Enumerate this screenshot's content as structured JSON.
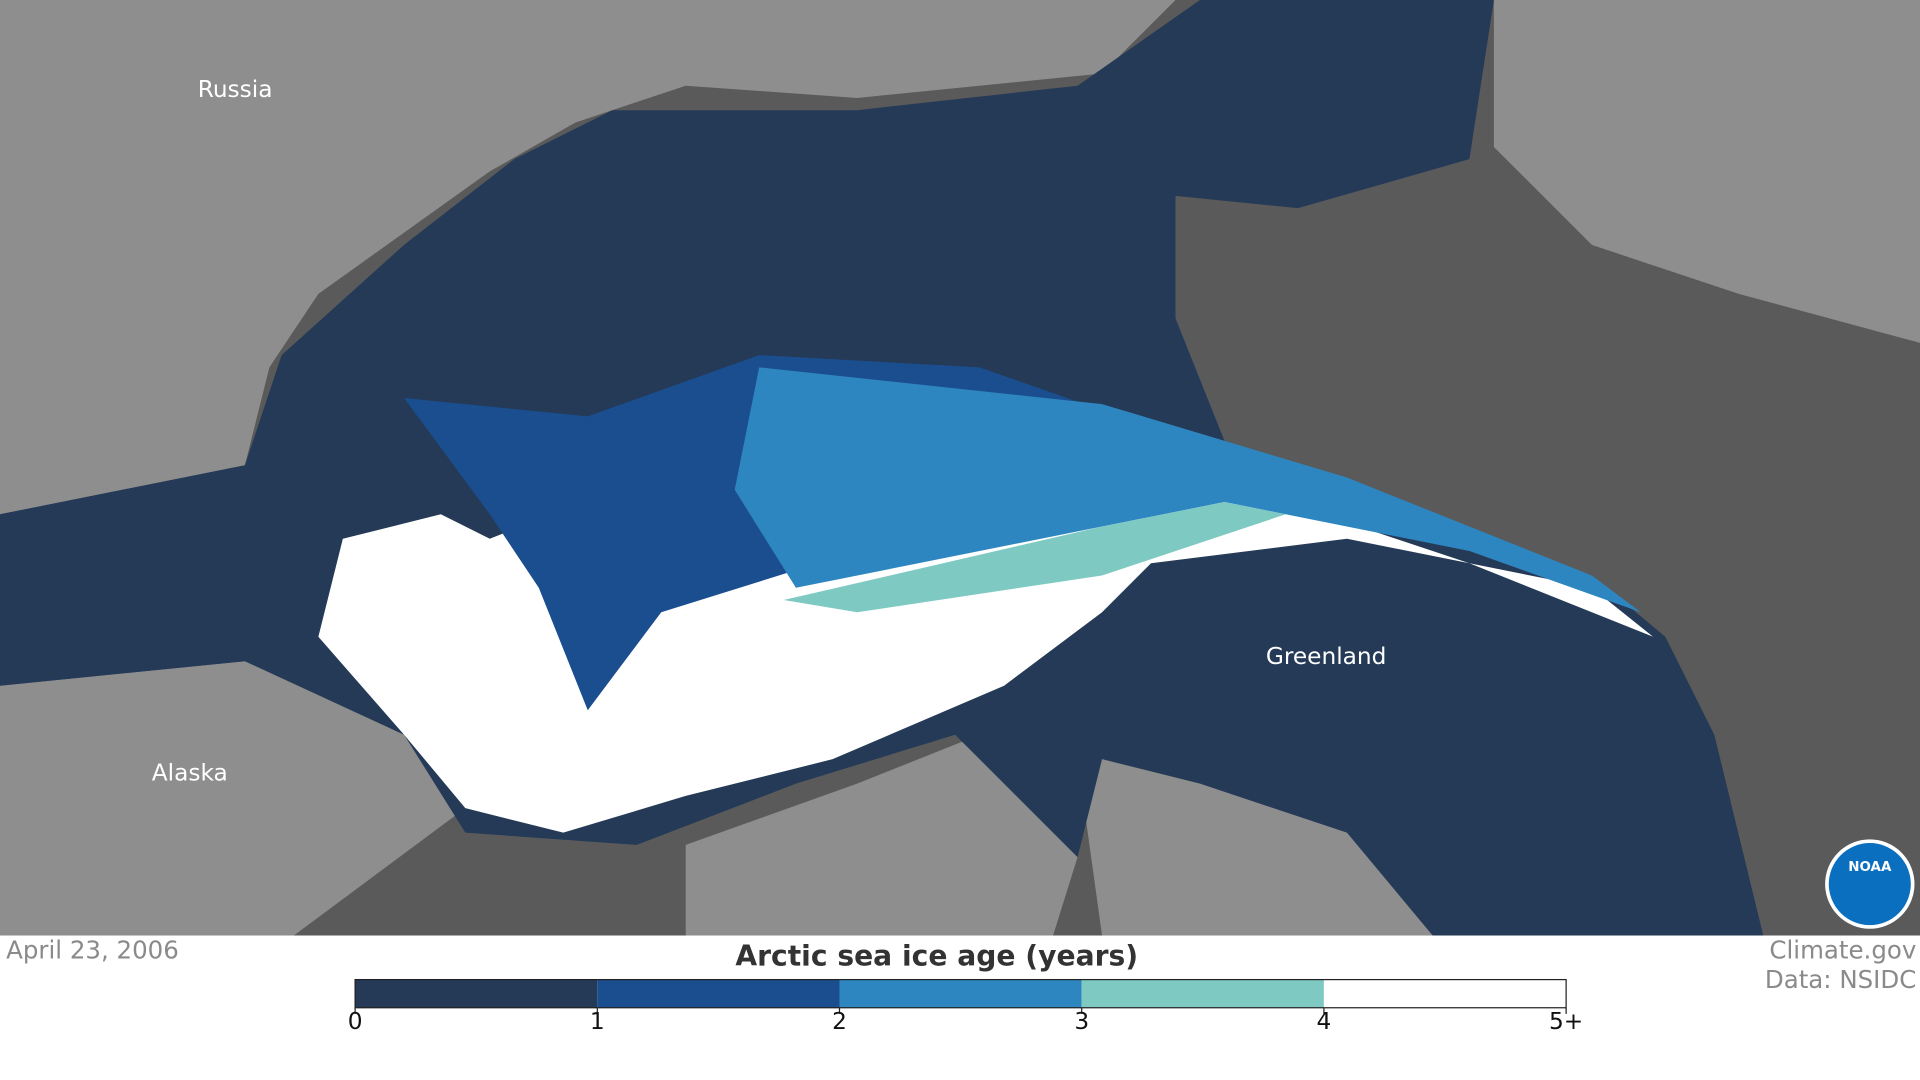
{
  "map": {
    "labels": [
      "Russia",
      "Alaska",
      "Greenland"
    ],
    "date": "April 23, 2006",
    "credit": "Climate.gov",
    "source": "Data: NSIDC",
    "logo": "NOAA"
  },
  "legend": {
    "title": "Arctic sea ice age (years)",
    "ticks": [
      0,
      1,
      2,
      3,
      4,
      {
        "value": 5,
        "label": "5+"
      }
    ],
    "colors": [
      "#243a57",
      "#1b4e8f",
      "#2e86c1",
      "#7ecac3",
      "#ffffff"
    ]
  }
}
